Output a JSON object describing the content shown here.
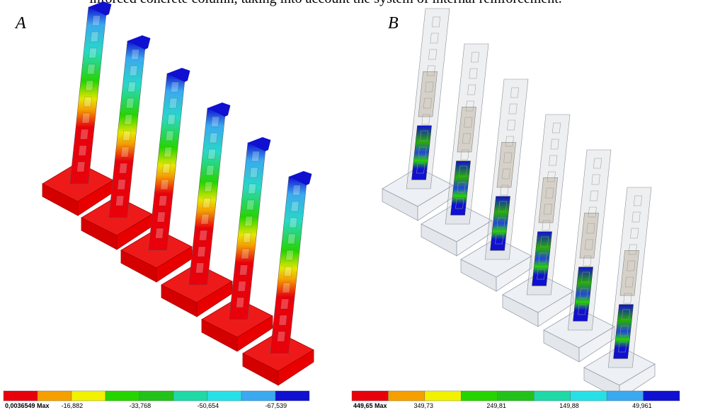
{
  "caption_fragment": "inforced concrete column, taking into account the system of internal reinforcement.",
  "panels": [
    {
      "label": "A",
      "colorbar": {
        "colors": [
          "#e8000b",
          "#f5a000",
          "#f2f200",
          "#26d400",
          "#22c21a",
          "#1fd9a6",
          "#27e0e6",
          "#3aa9f0",
          "#1010d0"
        ],
        "labels": [
          "0,0036549 Max",
          "-16,882",
          "-33,768",
          "-50,654",
          "-67,539"
        ]
      }
    },
    {
      "label": "B",
      "colorbar": {
        "colors": [
          "#e8000b",
          "#f5a000",
          "#f2f200",
          "#26d400",
          "#22c21a",
          "#1fd9a6",
          "#27e0e6",
          "#3aa9f0",
          "#1010d0"
        ],
        "labels": [
          "449,65 Max",
          "349,73",
          "249,81",
          "149,88",
          "49,961"
        ]
      }
    }
  ]
}
